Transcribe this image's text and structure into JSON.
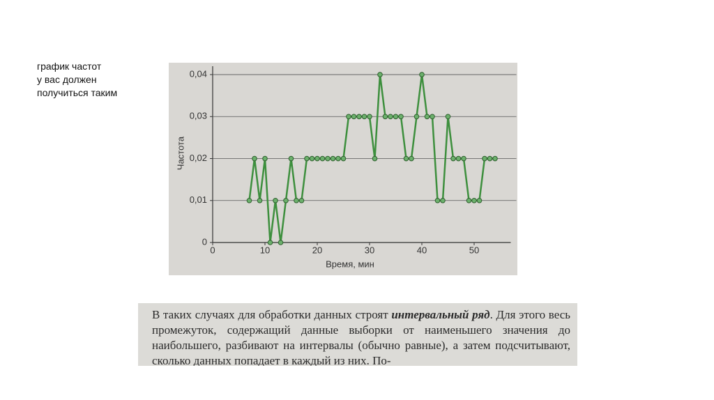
{
  "slide_text": [
    "график частот",
    "у вас должен",
    "получиться таким"
  ],
  "chart_data": {
    "type": "line",
    "y_label": "Частота",
    "x_label": "Время, мин",
    "x": [
      7,
      8,
      9,
      10,
      11,
      12,
      13,
      14,
      15,
      16,
      17,
      18,
      19,
      20,
      21,
      22,
      23,
      24,
      25,
      26,
      27,
      28,
      29,
      30,
      31,
      32,
      33,
      34,
      35,
      36,
      37,
      38,
      39,
      40,
      41,
      42,
      43,
      44,
      45,
      46,
      47,
      48,
      49,
      50,
      51,
      52,
      53,
      54
    ],
    "series": [
      {
        "color": "#3d8f3d",
        "values": [
          0.01,
          0.02,
          0.01,
          0.02,
          0,
          0.01,
          0,
          0.01,
          0.02,
          0.01,
          0.01,
          0.02,
          0.02,
          0.02,
          0.02,
          0.02,
          0.02,
          0.02,
          0.02,
          0.03,
          0.03,
          0.03,
          0.03,
          0.03,
          0.02,
          0.04,
          0.03,
          0.03,
          0.03,
          0.03,
          0.02,
          0.02,
          0.03,
          0.04,
          0.03,
          0.03,
          0.01,
          0.01,
          0.03,
          0.02,
          0.02,
          0.02,
          0.01,
          0.01,
          0.01,
          0.02,
          0.02,
          0.02
        ]
      }
    ],
    "xlim": [
      0,
      57
    ],
    "xticks": [
      0,
      10,
      20,
      30,
      40,
      50
    ],
    "ylim": [
      0,
      0.042
    ],
    "yticks": [
      0,
      {
        "value": 0.01,
        "label": "0,01"
      },
      {
        "value": 0.02,
        "label": "0,02"
      },
      {
        "value": 0.03,
        "label": "0,03"
      },
      {
        "value": 0.04,
        "label": "0,04"
      }
    ],
    "grid": true
  },
  "excerpt": {
    "before": "В таких случаях для обработки данных строят",
    "emphasis": "интервальный ряд",
    "after": ". Для этого весь промежуток, содержащий данные выборки от наименьшего значения до наибольшего, разбивают на интервалы (обычно равные), а затем подсчитывают, сколько данных попадает в каждый из них. По-"
  }
}
